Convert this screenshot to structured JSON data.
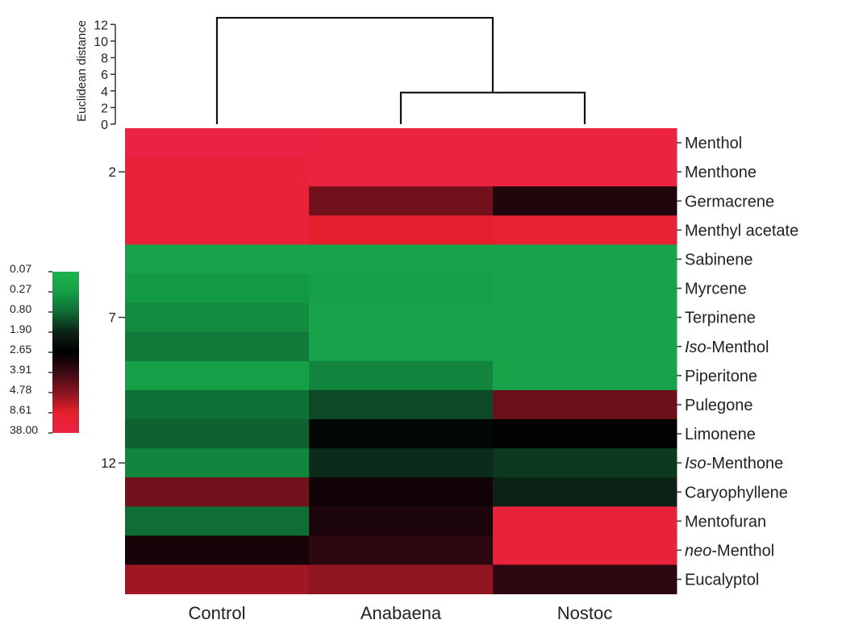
{
  "chart_data": {
    "type": "heatmap",
    "columns": [
      "Control",
      "Anabaena",
      "Nostoc"
    ],
    "rows": [
      "Menthol",
      "Menthone",
      "Germacrene",
      "Menthyl acetate",
      "Sabinene",
      "Myrcene",
      "Terpinene",
      "Iso-Menthol",
      "Piperitone",
      "Pulegone",
      "Limonene",
      "Iso-Menthone",
      "Caryophyllene",
      "Mentofuran",
      "neo-Menthol",
      "Eucalyptol"
    ],
    "row_label_parts": [
      {
        "italic": "",
        "rest": "Menthol"
      },
      {
        "italic": "",
        "rest": "Menthone"
      },
      {
        "italic": "",
        "rest": "Germacrene"
      },
      {
        "italic": "",
        "rest": "Menthyl acetate"
      },
      {
        "italic": "",
        "rest": "Sabinene"
      },
      {
        "italic": "",
        "rest": "Myrcene"
      },
      {
        "italic": "",
        "rest": "Terpinene"
      },
      {
        "italic": "Iso",
        "rest": "-Menthol"
      },
      {
        "italic": "",
        "rest": "Piperitone"
      },
      {
        "italic": "",
        "rest": "Pulegone"
      },
      {
        "italic": "",
        "rest": "Limonene"
      },
      {
        "italic": "Iso",
        "rest": "-Menthone"
      },
      {
        "italic": "",
        "rest": "Caryophyllene"
      },
      {
        "italic": "",
        "rest": "Mentofuran"
      },
      {
        "italic": "neo",
        "rest": "-Menthol"
      },
      {
        "italic": "",
        "rest": "Eucalyptol"
      }
    ],
    "values": [
      [
        38.0,
        30.0,
        30.0
      ],
      [
        20.0,
        30.0,
        30.0
      ],
      [
        20.0,
        4.5,
        3.3
      ],
      [
        20.0,
        10.0,
        15.0
      ],
      [
        0.2,
        0.2,
        0.2
      ],
      [
        0.3,
        0.25,
        0.2
      ],
      [
        0.4,
        0.2,
        0.2
      ],
      [
        0.6,
        0.2,
        0.2
      ],
      [
        0.25,
        0.45,
        0.2
      ],
      [
        0.7,
        1.2,
        4.4
      ],
      [
        0.9,
        2.5,
        2.6
      ],
      [
        0.45,
        1.7,
        1.45
      ],
      [
        4.5,
        3.0,
        1.9
      ],
      [
        0.75,
        3.2,
        20.0
      ],
      [
        3.1,
        3.6,
        20.0
      ],
      [
        5.5,
        5.0,
        3.6
      ]
    ],
    "left_row_ticks": [
      {
        "label": "2",
        "row": 2
      },
      {
        "label": "7",
        "row": 7
      },
      {
        "label": "12",
        "row": 12
      }
    ],
    "colorbar": {
      "labels": [
        "0.07",
        "0.27",
        "0.80",
        "1.90",
        "2.65",
        "3.91",
        "4.78",
        "8.61",
        "38.00"
      ],
      "stops": [
        {
          "value": 0.07,
          "color": "#1ab54e"
        },
        {
          "value": 0.27,
          "color": "#159e47"
        },
        {
          "value": 0.8,
          "color": "#0f6b35"
        },
        {
          "value": 1.9,
          "color": "#0c2216"
        },
        {
          "value": 2.65,
          "color": "#000000"
        },
        {
          "value": 3.91,
          "color": "#3a0a14"
        },
        {
          "value": 4.78,
          "color": "#8a1420"
        },
        {
          "value": 8.61,
          "color": "#e41f2a"
        },
        {
          "value": 38.0,
          "color": "#ec2244"
        }
      ]
    },
    "dendrogram": {
      "ylabel": "Euclidean distance",
      "yticks": [
        0,
        2,
        4,
        6,
        8,
        10,
        12
      ],
      "ylim": [
        0,
        13
      ],
      "merges": [
        {
          "left": "Anabaena",
          "right": "Nostoc",
          "height": 3.8
        },
        {
          "left": "Control",
          "right": "Anabaena+Nostoc",
          "height": 12.8
        }
      ]
    }
  }
}
